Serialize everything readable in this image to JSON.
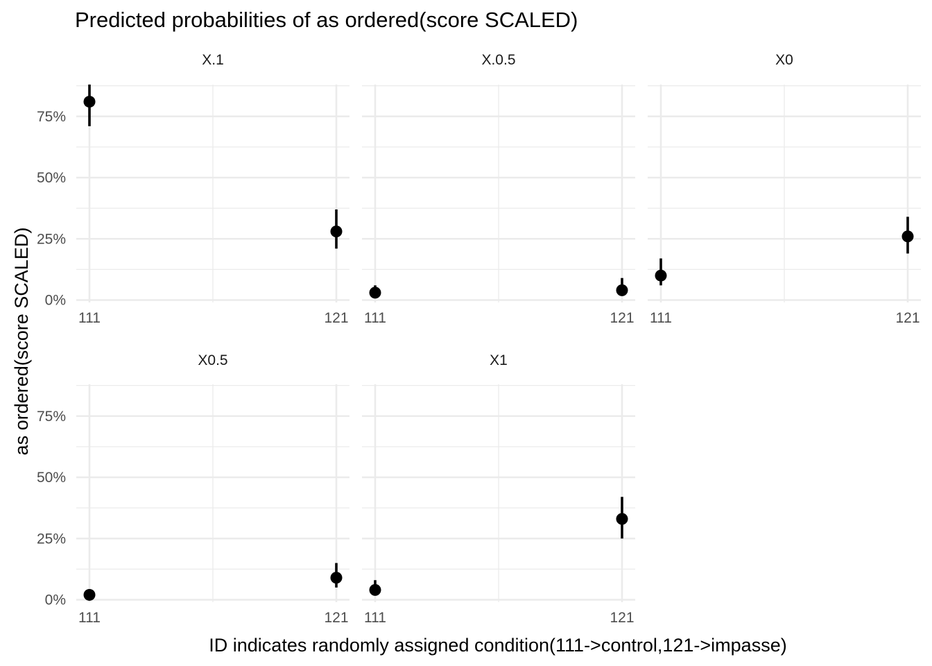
{
  "chart_data": {
    "type": "scatter",
    "title": "Predicted probabilities of as ordered(score SCALED)",
    "xlabel": "ID indicates randomly assigned condition(111->control,121->impasse)",
    "ylabel": "as ordered(score SCALED)",
    "categories": [
      "111",
      "121"
    ],
    "y_ticks": [
      0,
      25,
      50,
      75
    ],
    "y_tick_labels": [
      "0%",
      "25%",
      "50%",
      "75%"
    ],
    "ylim": [
      0,
      88
    ],
    "grid": true,
    "error_bars": true,
    "colors": {
      "points": "#000000",
      "grid": "#ebebeb",
      "background": "#ffffff"
    },
    "panels": [
      {
        "name": "X.1",
        "points": [
          {
            "x": "111",
            "y": 81,
            "lower": 71,
            "upper": 88
          },
          {
            "x": "121",
            "y": 28,
            "lower": 21,
            "upper": 37
          }
        ]
      },
      {
        "name": "X.0.5",
        "points": [
          {
            "x": "111",
            "y": 3,
            "lower": 1,
            "upper": 6
          },
          {
            "x": "121",
            "y": 4,
            "lower": 2,
            "upper": 9
          }
        ]
      },
      {
        "name": "X0",
        "points": [
          {
            "x": "111",
            "y": 10,
            "lower": 6,
            "upper": 17
          },
          {
            "x": "121",
            "y": 26,
            "lower": 19,
            "upper": 34
          }
        ]
      },
      {
        "name": "X0.5",
        "points": [
          {
            "x": "111",
            "y": 2,
            "lower": 1,
            "upper": 3
          },
          {
            "x": "121",
            "y": 9,
            "lower": 5,
            "upper": 15
          }
        ]
      },
      {
        "name": "X1",
        "points": [
          {
            "x": "111",
            "y": 4,
            "lower": 2,
            "upper": 8
          },
          {
            "x": "121",
            "y": 33,
            "lower": 25,
            "upper": 42
          }
        ]
      }
    ]
  }
}
